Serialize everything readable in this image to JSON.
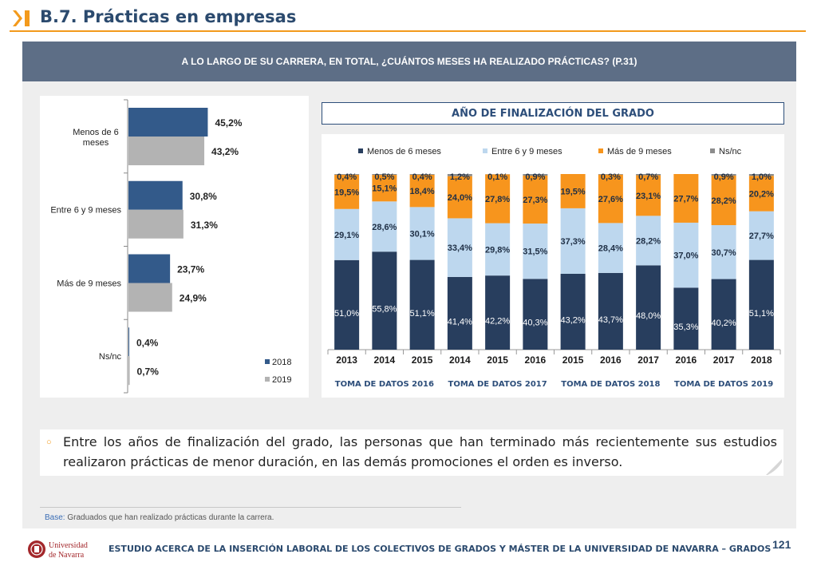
{
  "header": {
    "title": "B.7. Prácticas en empresas"
  },
  "question": "A LO LARGO DE SU CARRERA, EN TOTAL, ¿CUÁNTOS MESES HA REALIZADO PRÁCTICAS? (P.31)",
  "year_header": "AÑO DE FINALIZACIÓN DEL GRADO",
  "note": "Entre los años de finalización del grado, las personas que han terminado más recientemente sus estudios realizaron prácticas de menor duración, en las demás promociones el orden es inverso.",
  "base": {
    "label": "Base:",
    "text": " Graduados que han realizado prácticas durante la carrera."
  },
  "footer": "ESTUDIO ACERCA DE LA INSERCIÓN LABORAL DE LOS COLECTIVOS DE GRADOS Y MÁSTER DE LA UNIVERSIDAD DE NAVARRA – GRADOS",
  "page_number": "121",
  "logo": {
    "line1": "Universidad",
    "line2": "de Navarra"
  },
  "colors": {
    "accent": "#f39a1c",
    "navy": "#2b4a6e",
    "series2018": "#335a8a",
    "series2019": "#b3b3b3",
    "menos6": "#283e5e",
    "entre6y9": "#bdd7ee",
    "mas9": "#f7951d",
    "nsnc": "#8c8c8c"
  },
  "chart_data": [
    {
      "type": "bar",
      "orientation": "horizontal",
      "categories": [
        "Menos de 6 meses",
        "Entre 6 y 9 meses",
        "Más de 9 meses",
        "Ns/nc"
      ],
      "series": [
        {
          "name": "2018",
          "values": [
            45.2,
            30.8,
            23.7,
            0.4
          ],
          "labels": [
            "45,2%",
            "30,8%",
            "23,7%",
            "0,4%"
          ],
          "color": "#335a8a"
        },
        {
          "name": "2019",
          "values": [
            43.2,
            31.3,
            24.9,
            0.7
          ],
          "labels": [
            "43,2%",
            "31,3%",
            "24,9%",
            "0,7%"
          ],
          "color": "#b3b3b3"
        }
      ],
      "legend": "bottom-right",
      "xlim": [
        0,
        100
      ]
    },
    {
      "type": "bar",
      "stacked": true,
      "groups": [
        "TOMA DE DATOS 2016",
        "TOMA DE DATOS 2017",
        "TOMA DE DATOS 2018",
        "TOMA DE DATOS 2019"
      ],
      "categories": [
        "2013",
        "2014",
        "2015",
        "2014",
        "2015",
        "2016",
        "2015",
        "2016",
        "2017",
        "2016",
        "2017",
        "2018"
      ],
      "group_of_category": [
        0,
        0,
        0,
        1,
        1,
        1,
        2,
        2,
        2,
        3,
        3,
        3
      ],
      "series": [
        {
          "name": "Menos de 6 meses",
          "color": "#283e5e",
          "values": [
            51.0,
            55.8,
            51.1,
            41.4,
            42.2,
            40.3,
            43.2,
            43.7,
            48.0,
            35.3,
            40.2,
            51.1
          ],
          "labels": [
            "51,0%",
            "55,8%",
            "51,1%",
            "41,4%",
            "42,2%",
            "40,3%",
            "43,2%",
            "43,7%",
            "48,0%",
            "35,3%",
            "40,2%",
            "51,1%"
          ]
        },
        {
          "name": "Entre 6 y 9 meses",
          "color": "#bdd7ee",
          "values": [
            29.1,
            28.6,
            30.1,
            33.4,
            29.8,
            31.5,
            37.3,
            28.4,
            28.2,
            37.0,
            30.7,
            27.7
          ],
          "labels": [
            "29,1%",
            "28,6%",
            "30,1%",
            "33,4%",
            "29,8%",
            "31,5%",
            "37,3%",
            "28,4%",
            "28,2%",
            "37,0%",
            "30,7%",
            "27,7%"
          ]
        },
        {
          "name": "Más de 9 meses",
          "color": "#f7951d",
          "values": [
            19.5,
            15.1,
            18.4,
            24.0,
            27.8,
            27.3,
            19.5,
            27.6,
            23.1,
            27.7,
            28.2,
            20.2
          ],
          "labels": [
            "19,5%",
            "15,1%",
            "18,4%",
            "24,0%",
            "27,8%",
            "27,3%",
            "19,5%",
            "27,6%",
            "23,1%",
            "27,7%",
            "28,2%",
            "20,2%"
          ]
        },
        {
          "name": "Ns/nc",
          "color": "#8c8c8c",
          "values": [
            0.4,
            0.5,
            0.4,
            1.2,
            0.1,
            0.9,
            null,
            0.3,
            0.7,
            null,
            0.9,
            1.0
          ],
          "labels": [
            "0,4%",
            "0,5%",
            "0,4%",
            "1,2%",
            "0,1%",
            "0,9%",
            "",
            "0,3%",
            "0,7%",
            "",
            "0,9%",
            "1,0%"
          ]
        }
      ],
      "legend": "top",
      "ylim": [
        0,
        100
      ]
    }
  ]
}
